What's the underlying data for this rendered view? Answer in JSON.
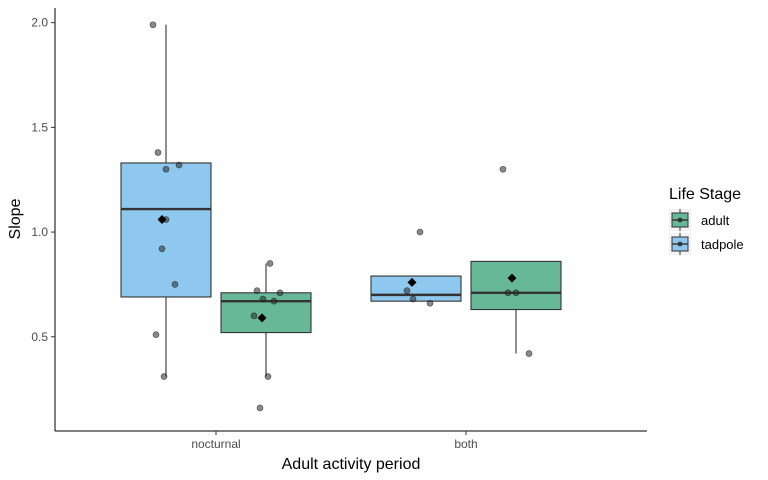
{
  "chart_data": {
    "type": "boxplot",
    "xlabel": "Adult activity period",
    "ylabel": "Slope",
    "categories": [
      "nocturnal",
      "both"
    ],
    "ylim": [
      0.05,
      2.07
    ],
    "yticks": [
      0.5,
      1.0,
      1.5,
      2.0
    ],
    "ytick_labels": [
      "0.5",
      "1.0",
      "1.5",
      "2.0"
    ],
    "grid": false,
    "legend": {
      "title": "Life Stage",
      "placement": "right",
      "entries": [
        {
          "name": "adult",
          "color": "#66b896"
        },
        {
          "name": "tadpole",
          "color": "#8ec8ee"
        }
      ]
    },
    "series": [
      {
        "name": "tadpole",
        "color": "#8ec8ee",
        "boxes": [
          {
            "category": "nocturnal",
            "whisker_low": 0.31,
            "q1": 0.69,
            "median": 1.11,
            "q3": 1.33,
            "whisker_high": 1.99,
            "mean": 1.06,
            "points": [
              1.99,
              1.38,
              1.3,
              1.32,
              1.06,
              0.92,
              0.75,
              0.51,
              0.31
            ]
          },
          {
            "category": "both",
            "whisker_low": 0.67,
            "q1": 0.67,
            "median": 0.7,
            "q3": 0.79,
            "whisker_high": 0.79,
            "mean": 0.76,
            "points": [
              1.0,
              0.72,
              0.66,
              0.68
            ]
          }
        ]
      },
      {
        "name": "adult",
        "color": "#66b896",
        "boxes": [
          {
            "category": "nocturnal",
            "whisker_low": 0.31,
            "q1": 0.52,
            "median": 0.67,
            "q3": 0.71,
            "whisker_high": 0.85,
            "mean": 0.59,
            "points": [
              0.85,
              0.72,
              0.71,
              0.68,
              0.67,
              0.6,
              0.31,
              0.16
            ]
          },
          {
            "category": "both",
            "whisker_low": 0.42,
            "q1": 0.63,
            "median": 0.71,
            "q3": 0.86,
            "whisker_high": 0.86,
            "mean": 0.78,
            "points": [
              1.3,
              0.71,
              0.71,
              0.42
            ]
          }
        ]
      }
    ]
  }
}
